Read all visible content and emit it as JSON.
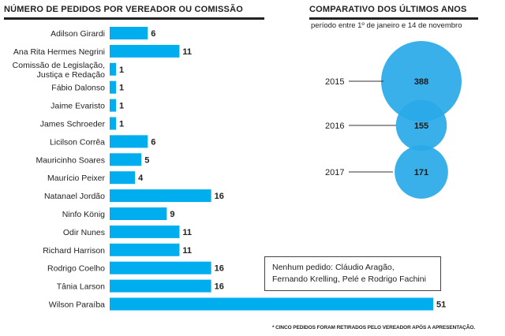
{
  "colors": {
    "bar": "#00aeef",
    "bubble": "#29a9e8",
    "text": "#222222"
  },
  "chart_data": [
    {
      "type": "bar",
      "orientation": "horizontal",
      "title": "NÚMERO DE PEDIDOS POR VEREADOR OU COMISSÃO",
      "categories": [
        [
          "Adilson Girardi"
        ],
        [
          "Ana Rita Hermes Negrini"
        ],
        [
          "Comissão de Legislação,",
          "Justiça e Redação"
        ],
        [
          "Fábio Dalonso"
        ],
        [
          "Jaime Evaristo"
        ],
        [
          "James Schroeder"
        ],
        [
          "Licilson Corrêa"
        ],
        [
          "Mauricinho Soares"
        ],
        [
          "Maurício Peixer"
        ],
        [
          "Natanael Jordão"
        ],
        [
          "Ninfo König"
        ],
        [
          "Odir Nunes"
        ],
        [
          "Richard Harrison"
        ],
        [
          "Rodrigo Coelho"
        ],
        [
          "Tânia Larson"
        ],
        [
          "Wilson Paraíba"
        ]
      ],
      "values": [
        6,
        11,
        1,
        1,
        1,
        1,
        6,
        5,
        4,
        16,
        9,
        11,
        11,
        16,
        16,
        51
      ],
      "xlim": [
        0,
        51
      ],
      "grid": false,
      "legend": "none"
    },
    {
      "type": "bubble",
      "title": "COMPARATIVO DOS ÚLTIMOS ANOS",
      "subtitle": "período entre 1º de janeiro e 14 de novembro",
      "categories": [
        "2015",
        "2016",
        "2017"
      ],
      "values": [
        388,
        155,
        171
      ]
    }
  ],
  "note": {
    "line1": "Nenhum pedido: Cláudio Aragão,",
    "line2": "Fernando Krelling, Pelé e Rodrigo Fachini"
  },
  "footnote": "* CINCO PEDIDOS FORAM RETIRADOS PELO VEREADOR APÓS A APRESENTAÇÃO."
}
